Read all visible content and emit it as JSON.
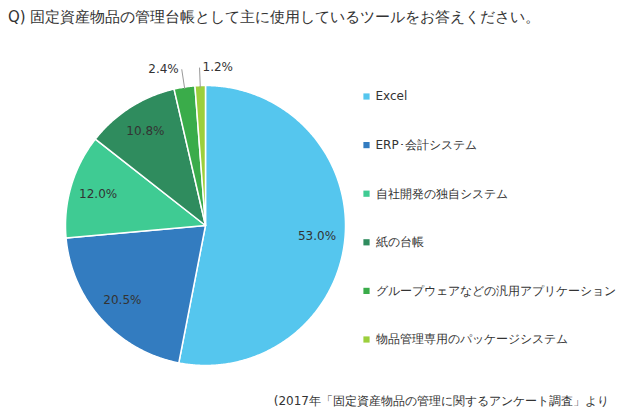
{
  "chart_data": {
    "type": "pie",
    "title": "Q) 固定資産物品の管理台帳として主に使用しているツールをお答えください。",
    "categories": [
      "Excel",
      "ERP･会計システム",
      "自社開発の独自システム",
      "紙の台帳",
      "グループウェアなどの汎用アプリケーション",
      "物品管理専用のパッケージシステム"
    ],
    "values": [
      53.0,
      20.5,
      12.0,
      10.8,
      2.4,
      1.2
    ],
    "value_labels": [
      "53.0%",
      "20.5%",
      "12.0%",
      "10.8%",
      "2.4%",
      "1.2%"
    ],
    "colors": [
      "#55c6ee",
      "#337cc0",
      "#3fcb93",
      "#2f8c5e",
      "#3aac4a",
      "#9ccf3c"
    ],
    "data_labels": true,
    "legend": "right",
    "caption": "(2017年「固定資産物品の管理に関するアンケート調査」より"
  }
}
